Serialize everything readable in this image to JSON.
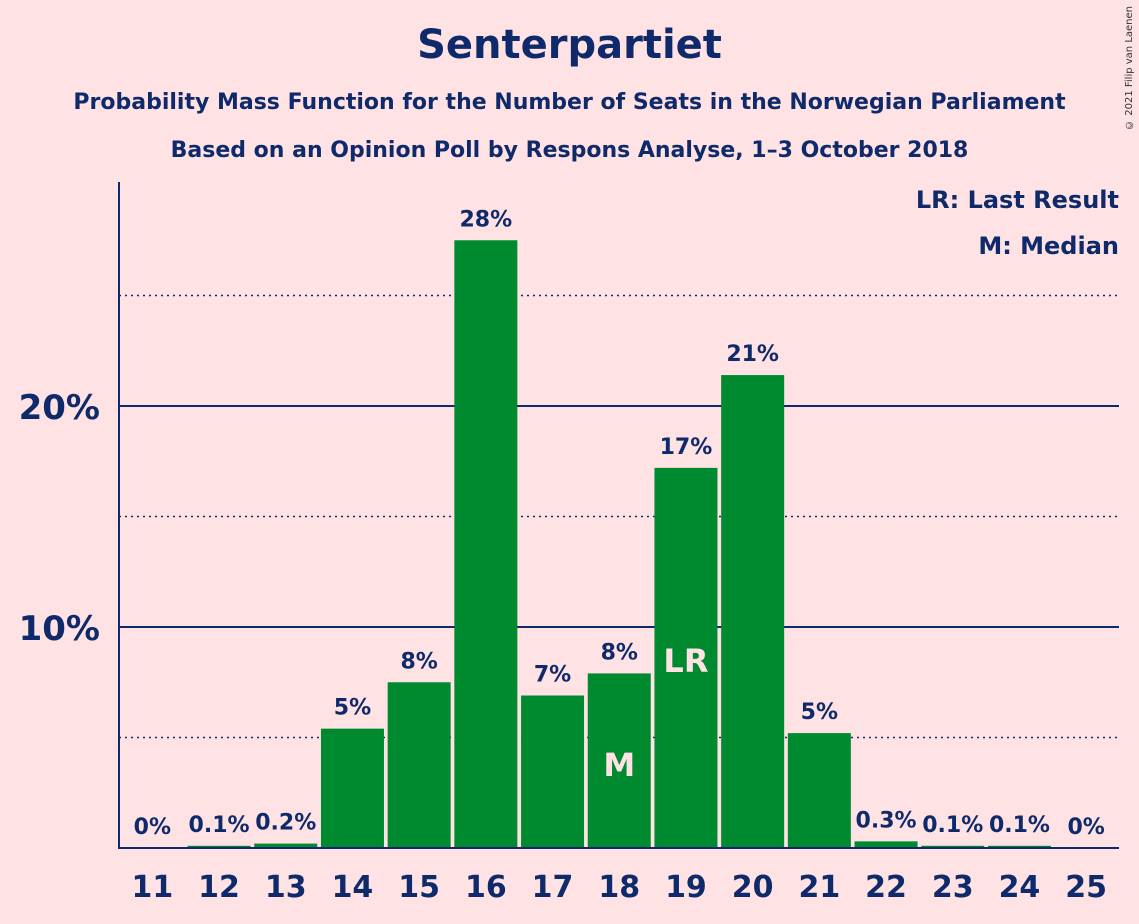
{
  "header": {
    "title": "Senterpartiet",
    "subtitle1": "Probability Mass Function for the Number of Seats in the Norwegian Parliament",
    "subtitle2": "Based on an Opinion Poll by Respons Analyse, 1–3 October 2018",
    "copyright": "© 2021 Filip van Laenen"
  },
  "legend": {
    "lr": "LR: Last Result",
    "m": "M: Median"
  },
  "chart_data": {
    "type": "bar",
    "categories": [
      "11",
      "12",
      "13",
      "14",
      "15",
      "16",
      "17",
      "18",
      "19",
      "20",
      "21",
      "22",
      "23",
      "24",
      "25"
    ],
    "values": [
      0,
      0.1,
      0.2,
      5.4,
      7.5,
      27.5,
      6.9,
      7.9,
      17.2,
      21.4,
      5.2,
      0.3,
      0.1,
      0.1,
      0
    ],
    "labels": [
      "0%",
      "0.1%",
      "0.2%",
      "5%",
      "8%",
      "28%",
      "7%",
      "8%",
      "17%",
      "21%",
      "5%",
      "0.3%",
      "0.1%",
      "0.1%",
      "0%"
    ],
    "ylim": [
      0,
      30
    ],
    "yticks": [
      {
        "value": 10,
        "label": "10%"
      },
      {
        "value": 20,
        "label": "20%"
      }
    ],
    "minor_gridlines": [
      5,
      15,
      25
    ],
    "markers": [
      {
        "category": "18",
        "text": "M"
      },
      {
        "category": "19",
        "text": "LR"
      }
    ],
    "colors": {
      "bar": "#008a30",
      "axis": "#0f2a6b",
      "background": "#ffe2e3",
      "marker_text": "#ffe2e3"
    }
  }
}
